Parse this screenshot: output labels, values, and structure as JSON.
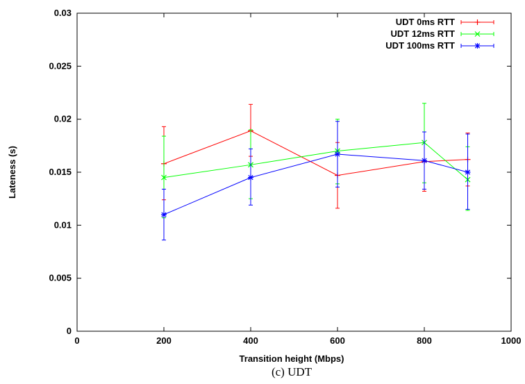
{
  "chart_data": {
    "type": "line",
    "title": "",
    "xlabel": "Transition height (Mbps)",
    "ylabel": "Lateness (s)",
    "caption": "(c)  UDT",
    "xlim": [
      0,
      1000
    ],
    "ylim": [
      0,
      0.03
    ],
    "x_ticks": [
      "0",
      "200",
      "400",
      "600",
      "800",
      "1000"
    ],
    "y_ticks": [
      "0",
      "0.005",
      "0.01",
      "0.015",
      "0.02",
      "0.025",
      "0.03"
    ],
    "grid": false,
    "legend_position": "top-right",
    "series": [
      {
        "name": "UDT 0ms RTT",
        "color": "#ff0000",
        "marker": "plus",
        "x": [
          200,
          400,
          600,
          800,
          900
        ],
        "y": [
          0.0158,
          0.0189,
          0.0147,
          0.016,
          0.0162
        ],
        "err_low": [
          0.0124,
          0.0165,
          0.0116,
          0.0132,
          0.0137
        ],
        "err_high": [
          0.0193,
          0.0214,
          0.0178,
          0.0188,
          0.0187
        ]
      },
      {
        "name": "UDT 12ms RTT",
        "color": "#00ff00",
        "marker": "x",
        "x": [
          200,
          400,
          600,
          800,
          900
        ],
        "y": [
          0.0145,
          0.0157,
          0.017,
          0.0178,
          0.0143
        ],
        "err_low": [
          0.0107,
          0.0125,
          0.0139,
          0.014,
          0.0114
        ],
        "err_high": [
          0.0184,
          0.019,
          0.02,
          0.0215,
          0.0174
        ]
      },
      {
        "name": "UDT 100ms RTT",
        "color": "#0000ff",
        "marker": "star",
        "x": [
          200,
          400,
          600,
          800,
          900
        ],
        "y": [
          0.011,
          0.0145,
          0.0167,
          0.0161,
          0.015
        ],
        "err_low": [
          0.0086,
          0.0119,
          0.0136,
          0.0134,
          0.0115
        ],
        "err_high": [
          0.0134,
          0.0172,
          0.0198,
          0.0188,
          0.0186
        ]
      }
    ]
  }
}
